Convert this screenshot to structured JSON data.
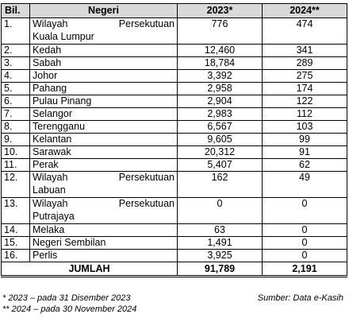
{
  "headers": {
    "bil": "Bil.",
    "negeri": "Negeri",
    "y2023": "2023*",
    "y2024": "2024**"
  },
  "rows": [
    {
      "bil": "1.",
      "negeri_line1": "Wilayah Persekutuan",
      "negeri_line2": "Kuala Lumpur",
      "y2023": "776",
      "y2024": "474"
    },
    {
      "bil": "2.",
      "negeri": "Kedah",
      "y2023": "12,460",
      "y2024": "341"
    },
    {
      "bil": "3.",
      "negeri": "Sabah",
      "y2023": "18,784",
      "y2024": "289"
    },
    {
      "bil": "4.",
      "negeri": "Johor",
      "y2023": "3,392",
      "y2024": "275"
    },
    {
      "bil": "5.",
      "negeri": "Pahang",
      "y2023": "2,958",
      "y2024": "174"
    },
    {
      "bil": "6.",
      "negeri": "Pulau Pinang",
      "y2023": "2,904",
      "y2024": "122"
    },
    {
      "bil": "7.",
      "negeri": "Selangor",
      "y2023": "2,983",
      "y2024": "112"
    },
    {
      "bil": "8.",
      "negeri": "Terengganu",
      "y2023": "6,567",
      "y2024": "103"
    },
    {
      "bil": "9.",
      "negeri": "Kelantan",
      "y2023": "9,605",
      "y2024": "99"
    },
    {
      "bil": "10.",
      "negeri": "Sarawak",
      "y2023": "20,312",
      "y2024": "91"
    },
    {
      "bil": "11.",
      "negeri": "Perak",
      "y2023": "5,407",
      "y2024": "62"
    },
    {
      "bil": "12.",
      "negeri_line1": "Wilayah Persekutuan",
      "negeri_line2": "Labuan",
      "y2023": "162",
      "y2024": "49"
    },
    {
      "bil": "13.",
      "negeri_line1": "Wilayah Persekutuan",
      "negeri_line2": "Putrajaya",
      "y2023": "0",
      "y2024": "0"
    },
    {
      "bil": "14.",
      "negeri": "Melaka",
      "y2023": "63",
      "y2024": "0"
    },
    {
      "bil": "15.",
      "negeri": "Negeri Sembilan",
      "y2023": "1,491",
      "y2024": "0"
    },
    {
      "bil": "16.",
      "negeri": "Perlis",
      "y2023": "3,925",
      "y2024": "0"
    }
  ],
  "total": {
    "label": "JUMLAH",
    "y2023": "91,789",
    "y2024": "2,191"
  },
  "notes": {
    "note_2023": "*  2023 – pada 31 Disember 2023",
    "note_2024": "** 2024 – pada 30 November 2024",
    "source": "Sumber: Data e-Kasih"
  }
}
